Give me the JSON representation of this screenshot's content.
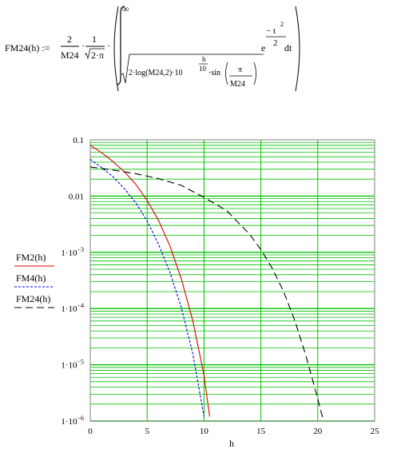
{
  "formula": {
    "lhs": "FM24(h) :=",
    "frac1_num": "2",
    "frac1_den": "M24",
    "frac2_num": "1",
    "frac2_den": "2·π",
    "upper_limit": "∞",
    "lower_a": "2·log(M24,2)·10",
    "lower_exp_num": "h",
    "lower_exp_den": "10",
    "lower_b": "·sin",
    "lower_pi": "π",
    "lower_m24": "M24",
    "integrand_base": "e",
    "integrand_num": "− t",
    "integrand_sq": "2",
    "integrand_den": "2",
    "dt": "dt"
  },
  "chart_data": {
    "type": "line",
    "xlabel": "h",
    "ylabel": "",
    "xlim": [
      0,
      25
    ],
    "ylim": [
      1e-06,
      0.1
    ],
    "yscale": "log",
    "grid": true,
    "grid_color": "#00c000",
    "xticks": [
      "0",
      "5",
      "10",
      "15",
      "20",
      "25"
    ],
    "yticks": [
      {
        "mant": "0.1",
        "exp": ""
      },
      {
        "mant": "0.01",
        "exp": ""
      },
      {
        "mant": "1·10",
        "exp": "−3"
      },
      {
        "mant": "1·10",
        "exp": "−4"
      },
      {
        "mant": "1·10",
        "exp": "−5"
      },
      {
        "mant": "1·10",
        "exp": "−6"
      }
    ],
    "series": [
      {
        "name": "FM2(h)",
        "color": "#e00000",
        "dash": "solid",
        "x": [
          0,
          1,
          2,
          3,
          4,
          5,
          6,
          7,
          8,
          9,
          10,
          10.5
        ],
        "y": [
          0.08,
          0.059,
          0.041,
          0.027,
          0.0162,
          0.0084,
          0.0037,
          0.0013,
          0.00034,
          6.2e-05,
          6.5e-06,
          1.2e-06
        ]
      },
      {
        "name": "FM4(h)",
        "color": "#0000e0",
        "dash": "short",
        "x": [
          0,
          1,
          2,
          3,
          4,
          5,
          6,
          7,
          8,
          9,
          10
        ],
        "y": [
          0.045,
          0.032,
          0.022,
          0.0135,
          0.0076,
          0.0036,
          0.0014,
          0.00044,
          0.000105,
          1.62e-05,
          1.2e-06
        ]
      },
      {
        "name": "FM24(h)",
        "color": "#000000",
        "dash": "long",
        "x": [
          0,
          2,
          4,
          6,
          8,
          10,
          12,
          14,
          15,
          16,
          17,
          18,
          19,
          20,
          20.5
        ],
        "y": [
          0.033,
          0.029,
          0.025,
          0.0205,
          0.0155,
          0.0095,
          0.0055,
          0.0021,
          0.00112,
          0.00052,
          0.0002,
          6e-05,
          1.35e-05,
          2.5e-06,
          1e-06
        ]
      }
    ]
  }
}
